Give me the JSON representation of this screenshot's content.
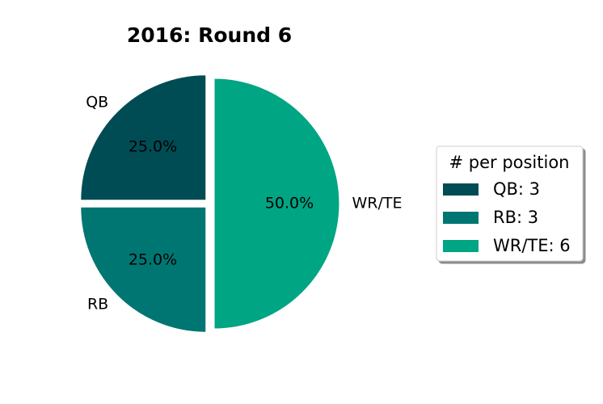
{
  "chart_data": {
    "type": "pie",
    "title": "2016: Round 6",
    "start_angle_deg": 90,
    "direction": "counterclockwise",
    "explode": true,
    "slices": [
      {
        "label": "QB",
        "value": 3,
        "pct_label": "25.0%",
        "color": "#004c54"
      },
      {
        "label": "RB",
        "value": 3,
        "pct_label": "25.0%",
        "color": "#007672"
      },
      {
        "label": "WR/TE",
        "value": 6,
        "pct_label": "50.0%",
        "color": "#00a584"
      }
    ],
    "legend": {
      "title": "# per position",
      "placement": "right",
      "entries": [
        "QB: 3",
        "RB: 3",
        "WR/TE: 6"
      ]
    }
  }
}
